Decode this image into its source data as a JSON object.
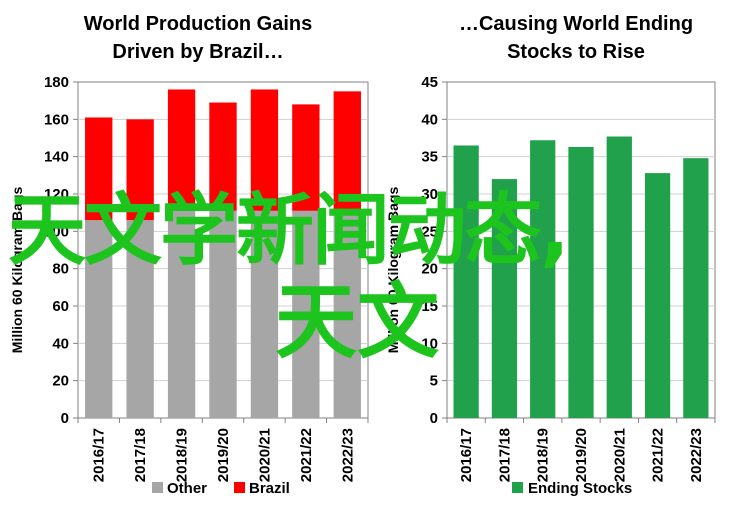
{
  "charts": [
    {
      "title_line1": "World Production Gains",
      "title_line2": "Driven by Brazil…",
      "ylabel": "Million 60 Kilogram Bags",
      "legend": [
        {
          "label": "Other",
          "color": "#a6a6a6"
        },
        {
          "label": "Brazil",
          "color": "#ff0000"
        }
      ]
    },
    {
      "title_line1": "…Causing World Ending",
      "title_line2": "Stocks to Rise",
      "ylabel": "Million 60 Kilogram Bags",
      "legend": [
        {
          "label": "Ending Stocks",
          "color": "#22a14c"
        }
      ]
    }
  ],
  "chart_data": [
    {
      "type": "bar",
      "stacked": true,
      "categories": [
        "2016/17",
        "2017/18",
        "2018/19",
        "2019/20",
        "2020/21",
        "2021/22",
        "2022/23"
      ],
      "series": [
        {
          "name": "Other",
          "color": "#a6a6a6",
          "values": [
            106,
            106,
            111,
            111,
            111,
            111,
            111
          ]
        },
        {
          "name": "Brazil",
          "color": "#ff0000",
          "values": [
            55,
            54,
            65,
            58,
            65,
            57,
            64
          ]
        }
      ],
      "title": "World Production Gains Driven by Brazil…",
      "ylabel": "Million 60 Kilogram Bags",
      "ylim": [
        0,
        180
      ],
      "yticks": [
        0,
        20,
        40,
        60,
        80,
        100,
        120,
        140,
        160,
        180
      ],
      "grid": true,
      "legend": "bottom"
    },
    {
      "type": "bar",
      "categories": [
        "2016/17",
        "2017/18",
        "2018/19",
        "2019/20",
        "2020/21",
        "2021/22",
        "2022/23"
      ],
      "series": [
        {
          "name": "Ending Stocks",
          "color": "#22a14c",
          "values": [
            36.5,
            32.0,
            37.2,
            36.3,
            37.7,
            32.8,
            34.8
          ]
        }
      ],
      "title": "…Causing World Ending Stocks to Rise",
      "ylabel": "Million 60 Kilogram Bags",
      "ylim": [
        0,
        45
      ],
      "yticks": [
        0,
        5,
        10,
        15,
        20,
        25,
        30,
        35,
        40,
        45
      ],
      "grid": true,
      "legend": "bottom"
    }
  ],
  "overlay_text": {
    "line1": "天文学新闻动态,",
    "line2": "天文"
  }
}
